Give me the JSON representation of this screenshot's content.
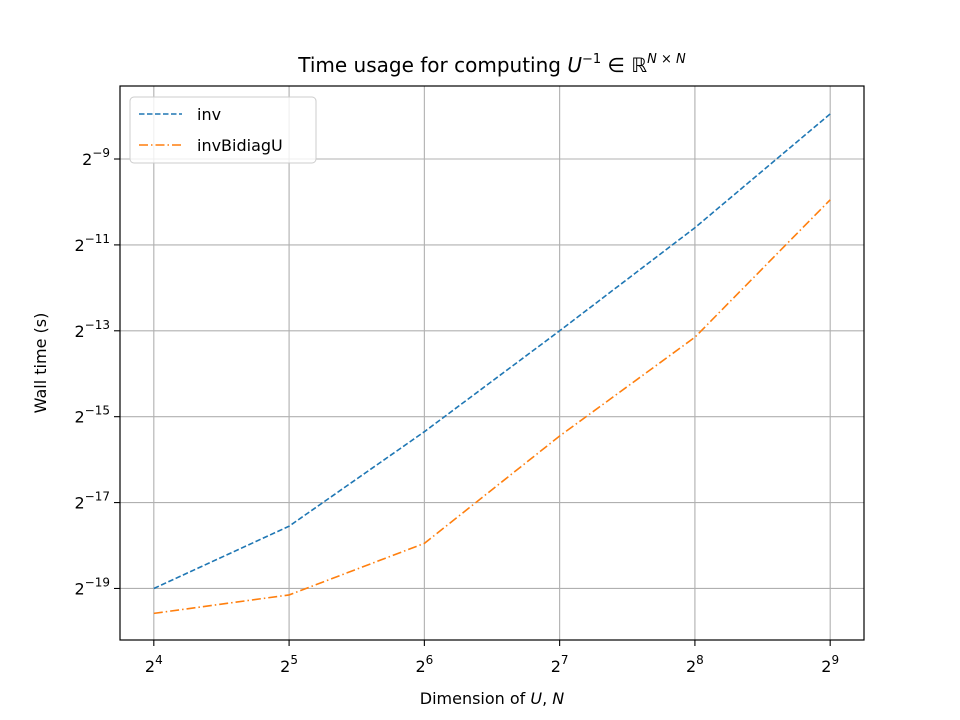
{
  "chart_data": {
    "type": "line",
    "title": "Time usage for computing U⁻¹ ∈ ℝᴺˣᴺ",
    "title_parts": {
      "prefix": "Time usage for computing ",
      "base": "U",
      "sup1": "−1",
      "mid": " ∈ ℝ",
      "sup2": "N × N"
    },
    "xlabel": "Dimension of U, N",
    "xlabel_parts": {
      "prefix": "Dimension of ",
      "var1": "U",
      "sep": ", ",
      "var2": "N"
    },
    "ylabel": "Wall time (s)",
    "x_scale": "log2",
    "y_scale": "log2",
    "x": [
      16,
      32,
      64,
      128,
      256,
      512
    ],
    "x_ticks": [
      {
        "base": "2",
        "exp": "4",
        "value": 16
      },
      {
        "base": "2",
        "exp": "5",
        "value": 32
      },
      {
        "base": "2",
        "exp": "6",
        "value": 64
      },
      {
        "base": "2",
        "exp": "7",
        "value": 128
      },
      {
        "base": "2",
        "exp": "8",
        "value": 256
      },
      {
        "base": "2",
        "exp": "9",
        "value": 512
      }
    ],
    "y_ticks": [
      {
        "base": "2",
        "exp": "−9",
        "log2": -9
      },
      {
        "base": "2",
        "exp": "−11",
        "log2": -11
      },
      {
        "base": "2",
        "exp": "−13",
        "log2": -13
      },
      {
        "base": "2",
        "exp": "−15",
        "log2": -15
      },
      {
        "base": "2",
        "exp": "−17",
        "log2": -17
      },
      {
        "base": "2",
        "exp": "−19",
        "log2": -19
      }
    ],
    "xlim_log2": [
      3.75,
      9.25
    ],
    "ylim_log2": [
      -20.2,
      -7.3
    ],
    "grid": true,
    "legend_position": "top-left",
    "series": [
      {
        "name": "inv",
        "color": "#1f77b4",
        "dash": "dashed",
        "values_log2": [
          -19.0,
          -17.55,
          -15.35,
          -13.0,
          -10.6,
          -7.95
        ]
      },
      {
        "name": "invBidiagU",
        "color": "#ff7f0e",
        "dash": "dashdot",
        "values_log2": [
          -19.58,
          -19.15,
          -17.95,
          -15.45,
          -13.15,
          -9.95
        ]
      }
    ]
  }
}
